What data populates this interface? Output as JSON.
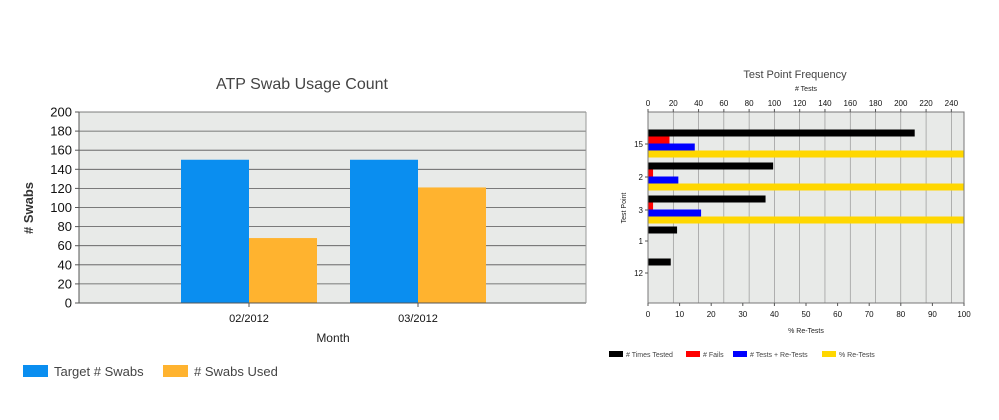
{
  "chart_data": [
    {
      "type": "bar",
      "title": "ATP Swab Usage Count",
      "xlabel": "Month",
      "ylabel": "# Swabs",
      "categories": [
        "02/2012",
        "03/2012"
      ],
      "series": [
        {
          "name": "Target # Swabs",
          "values": [
            150,
            150
          ],
          "color": "#0a8ef0"
        },
        {
          "name": "# Swabs Used",
          "values": [
            68,
            121
          ],
          "color": "#ffb32f"
        }
      ],
      "ylim": [
        0,
        200
      ],
      "yticks": [
        0,
        20,
        40,
        60,
        80,
        100,
        120,
        140,
        160,
        180,
        200
      ],
      "grid": true,
      "legend": "bottom-left"
    },
    {
      "type": "bar",
      "orientation": "horizontal",
      "title": "Test Point Frequency",
      "ylabel": "Test Point",
      "top_axis_label": "# Tests",
      "bottom_axis_label": "% Re-Tests",
      "categories": [
        "15",
        "2",
        "3",
        "1",
        "12"
      ],
      "top_axis": {
        "range": [
          0,
          250
        ],
        "ticks": [
          0,
          20,
          40,
          60,
          80,
          100,
          120,
          140,
          160,
          180,
          200,
          220,
          240
        ]
      },
      "bottom_axis": {
        "range": [
          0,
          100
        ],
        "ticks": [
          0,
          10,
          20,
          30,
          40,
          50,
          60,
          70,
          80,
          90,
          100
        ]
      },
      "series": [
        {
          "name": "# Times Tested",
          "axis": "top",
          "values": [
            211,
            99,
            93,
            23,
            18
          ],
          "color": "#000000"
        },
        {
          "name": "# Fails",
          "axis": "top",
          "values": [
            17,
            4,
            4,
            0,
            0
          ],
          "color": "#ff0000"
        },
        {
          "name": "# Tests + Re-Tests",
          "axis": "top",
          "values": [
            37,
            24,
            42,
            0,
            0
          ],
          "color": "#0000ff"
        },
        {
          "name": "% Re-Tests",
          "axis": "bottom",
          "values": [
            100,
            100,
            100,
            0,
            0
          ],
          "color": "#ffd700"
        }
      ],
      "grid": true,
      "legend": "bottom"
    }
  ]
}
